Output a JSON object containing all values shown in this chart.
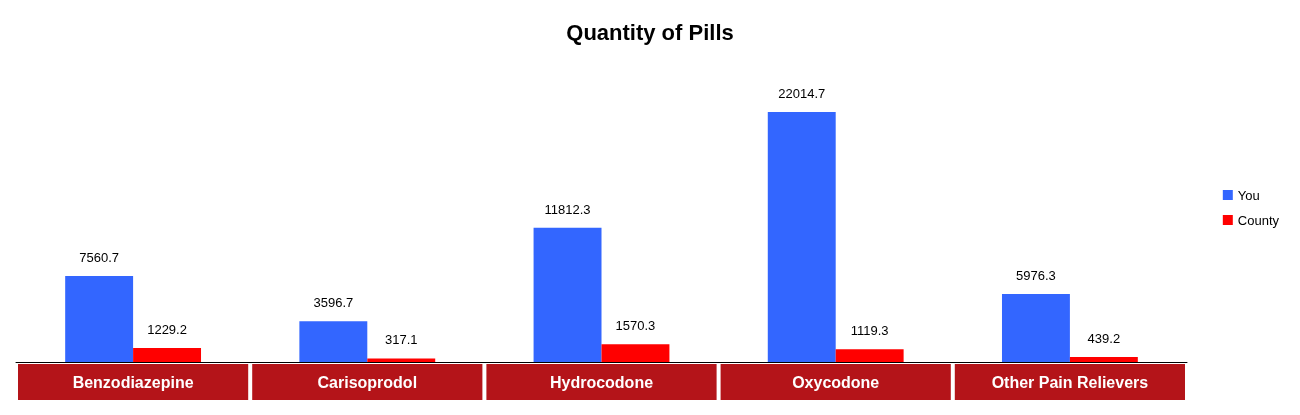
{
  "chart_data": {
    "type": "bar",
    "title": "Quantity of Pills",
    "categories": [
      "Benzodiazepine",
      "Carisoprodol",
      "Hydrocodone",
      "Oxycodone",
      "Other Pain Relievers"
    ],
    "series": [
      {
        "name": "You",
        "color": "#3366ff",
        "values": [
          7560.7,
          3596.7,
          11812.3,
          22014.7,
          5976.3
        ]
      },
      {
        "name": "County",
        "color": "#ff0000",
        "values": [
          1229.2,
          317.1,
          1570.3,
          1119.3,
          439.2
        ]
      }
    ],
    "data_labels": true,
    "legend": "right"
  }
}
